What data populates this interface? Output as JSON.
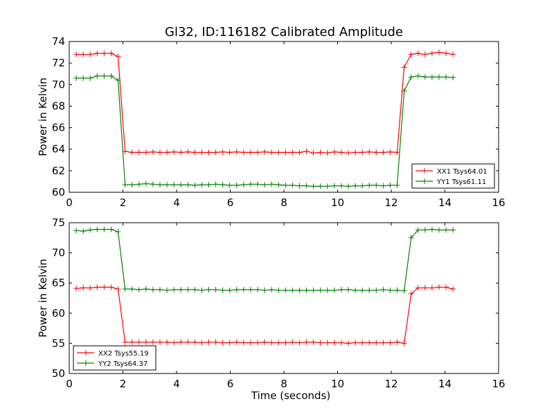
{
  "figure": {
    "title": "Gl32, ID:116182 Calibrated Amplitude"
  },
  "chart_data": [
    {
      "type": "line",
      "title": "Gl32, ID:116182 Calibrated Amplitude",
      "xlabel": "",
      "ylabel": "Power in Kelvin",
      "xlim": [
        0,
        16
      ],
      "ylim": [
        60,
        74
      ],
      "xticks": [
        "0",
        "2",
        "4",
        "6",
        "8",
        "10",
        "12",
        "14",
        "16"
      ],
      "yticks": [
        "60",
        "62",
        "64",
        "66",
        "68",
        "70",
        "72",
        "74"
      ],
      "grid": false,
      "legend_position": "lower-right",
      "x": [
        0.26,
        0.52,
        0.78,
        1.04,
        1.3,
        1.56,
        1.82,
        2.08,
        2.34,
        2.6,
        2.86,
        3.12,
        3.38,
        3.64,
        3.9,
        4.16,
        4.42,
        4.68,
        4.94,
        5.2,
        5.46,
        5.72,
        5.98,
        6.24,
        6.5,
        6.76,
        7.02,
        7.28,
        7.54,
        7.8,
        8.06,
        8.32,
        8.58,
        8.84,
        9.1,
        9.36,
        9.62,
        9.88,
        10.14,
        10.4,
        10.66,
        10.92,
        11.18,
        11.44,
        11.7,
        11.96,
        12.22,
        12.48,
        12.74,
        13.0,
        13.26,
        13.52,
        13.78,
        14.04,
        14.3
      ],
      "series": [
        {
          "name": "XX1 Tsys64.01",
          "color": "#ff0000",
          "values": [
            72.8,
            72.8,
            72.8,
            72.9,
            72.9,
            72.9,
            72.6,
            63.8,
            63.7,
            63.7,
            63.7,
            63.75,
            63.7,
            63.7,
            63.75,
            63.7,
            63.75,
            63.7,
            63.7,
            63.7,
            63.7,
            63.75,
            63.7,
            63.75,
            63.7,
            63.7,
            63.7,
            63.75,
            63.7,
            63.7,
            63.7,
            63.7,
            63.7,
            63.8,
            63.65,
            63.7,
            63.65,
            63.75,
            63.7,
            63.65,
            63.7,
            63.7,
            63.75,
            63.7,
            63.7,
            63.75,
            63.7,
            71.6,
            72.8,
            72.9,
            72.8,
            72.9,
            73.0,
            72.9,
            72.8
          ]
        },
        {
          "name": "YY1 Tsys61.11",
          "color": "#008000",
          "values": [
            70.6,
            70.6,
            70.6,
            70.8,
            70.8,
            70.8,
            70.4,
            60.7,
            60.7,
            60.75,
            60.8,
            60.75,
            60.7,
            60.7,
            60.7,
            60.7,
            60.7,
            60.65,
            60.7,
            60.7,
            60.75,
            60.7,
            60.65,
            60.65,
            60.7,
            60.75,
            60.75,
            60.7,
            60.75,
            60.7,
            60.65,
            60.65,
            60.6,
            60.6,
            60.55,
            60.55,
            60.55,
            60.6,
            60.6,
            60.55,
            60.6,
            60.6,
            60.65,
            60.65,
            60.6,
            60.65,
            60.65,
            69.4,
            70.7,
            70.8,
            70.7,
            70.7,
            70.7,
            70.7,
            70.65
          ]
        }
      ]
    },
    {
      "type": "line",
      "title": "",
      "xlabel": "Time (seconds)",
      "ylabel": "Power in Kelvin",
      "xlim": [
        0,
        16
      ],
      "ylim": [
        50,
        75
      ],
      "xticks": [
        "0",
        "2",
        "4",
        "6",
        "8",
        "10",
        "12",
        "14",
        "16"
      ],
      "yticks": [
        "50",
        "55",
        "60",
        "65",
        "70",
        "75"
      ],
      "grid": false,
      "legend_position": "lower-left",
      "x": [
        0.26,
        0.52,
        0.78,
        1.04,
        1.3,
        1.56,
        1.82,
        2.08,
        2.34,
        2.6,
        2.86,
        3.12,
        3.38,
        3.64,
        3.9,
        4.16,
        4.42,
        4.68,
        4.94,
        5.2,
        5.46,
        5.72,
        5.98,
        6.24,
        6.5,
        6.76,
        7.02,
        7.28,
        7.54,
        7.8,
        8.06,
        8.32,
        8.58,
        8.84,
        9.1,
        9.36,
        9.62,
        9.88,
        10.14,
        10.4,
        10.66,
        10.92,
        11.18,
        11.44,
        11.7,
        11.96,
        12.22,
        12.48,
        12.74,
        13.0,
        13.26,
        13.52,
        13.78,
        14.04,
        14.3
      ],
      "series": [
        {
          "name": "XX2 Tsys55.19",
          "color": "#ff0000",
          "values": [
            64.1,
            64.2,
            64.2,
            64.3,
            64.3,
            64.3,
            64.0,
            55.2,
            55.2,
            55.2,
            55.2,
            55.2,
            55.2,
            55.2,
            55.1,
            55.2,
            55.2,
            55.2,
            55.1,
            55.2,
            55.2,
            55.1,
            55.1,
            55.2,
            55.1,
            55.1,
            55.1,
            55.2,
            55.1,
            55.1,
            55.1,
            55.2,
            55.1,
            55.2,
            55.2,
            55.1,
            55.1,
            55.1,
            55.1,
            55.0,
            55.1,
            55.1,
            55.1,
            55.1,
            55.1,
            55.1,
            55.2,
            55.0,
            63.2,
            64.2,
            64.2,
            64.2,
            64.3,
            64.3,
            64.0
          ]
        },
        {
          "name": "YY2 Tsys64.37",
          "color": "#008000",
          "values": [
            73.7,
            73.6,
            73.8,
            73.9,
            73.9,
            73.9,
            73.5,
            64.0,
            64.0,
            63.9,
            64.0,
            63.9,
            63.9,
            63.8,
            63.9,
            63.9,
            63.9,
            63.9,
            63.8,
            63.9,
            63.9,
            63.8,
            63.8,
            63.9,
            63.9,
            63.9,
            63.9,
            63.8,
            63.9,
            63.8,
            63.8,
            63.8,
            63.8,
            63.8,
            63.8,
            63.8,
            63.8,
            63.8,
            63.9,
            63.9,
            63.8,
            63.8,
            63.8,
            63.8,
            63.9,
            63.8,
            63.8,
            63.7,
            72.5,
            73.8,
            73.8,
            73.9,
            73.8,
            73.8,
            73.8
          ]
        }
      ]
    }
  ]
}
